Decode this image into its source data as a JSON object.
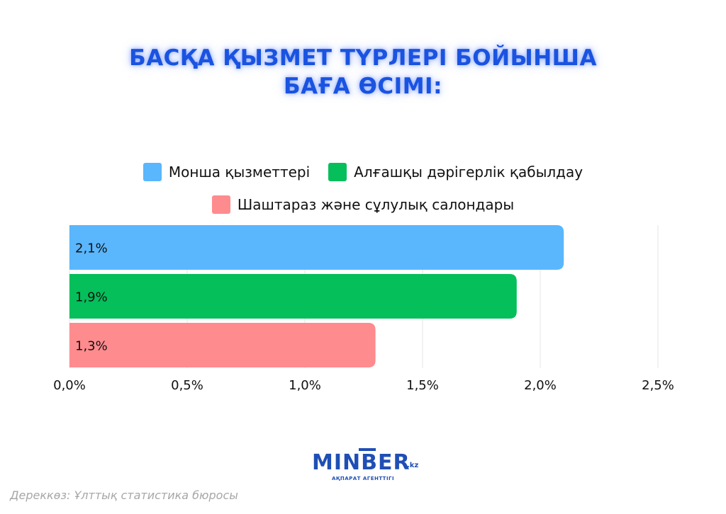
{
  "title": {
    "line1": "БАСҚА ҚЫЗМЕТ ТҮРЛЕРІ БОЙЫНША",
    "line2": "БАҒА ӨСІМІ:"
  },
  "legend": [
    {
      "label": "Монша қызметтері",
      "color": "#5ab6fd"
    },
    {
      "label": "Алғашқы дәрігерлік қабылдау",
      "color": "#04bf5a"
    },
    {
      "label": "Шаштараз және сұлулық салондары",
      "color": "#fe8b8e"
    }
  ],
  "chart_data": {
    "type": "bar",
    "orientation": "horizontal",
    "series": [
      {
        "name": "Монша қызметтері",
        "value": 2.1,
        "label": "2,1%",
        "color": "#5ab6fd"
      },
      {
        "name": "Алғашқы дәрігерлік қабылдау",
        "value": 1.9,
        "label": "1,9%",
        "color": "#04bf5a"
      },
      {
        "name": "Шаштараз және сұлулық салондары",
        "value": 1.3,
        "label": "1,3%",
        "color": "#fe8b8e"
      }
    ],
    "x_ticks": [
      {
        "value": 0.0,
        "label": "0,0%"
      },
      {
        "value": 0.5,
        "label": "0,5%"
      },
      {
        "value": 1.0,
        "label": "1,0%"
      },
      {
        "value": 1.5,
        "label": "1,5%"
      },
      {
        "value": 2.0,
        "label": "2,0%"
      },
      {
        "value": 2.5,
        "label": "2,5%"
      }
    ],
    "xlim": [
      0,
      2.5
    ],
    "grid": true,
    "legend_position": "top"
  },
  "logo": {
    "main": "MINBER",
    "suffix": ".kz",
    "subtitle": "АҚПАРАТ АГЕНТТІГІ"
  },
  "source": "Дереккөз: Ұлттық статистика бюросы"
}
